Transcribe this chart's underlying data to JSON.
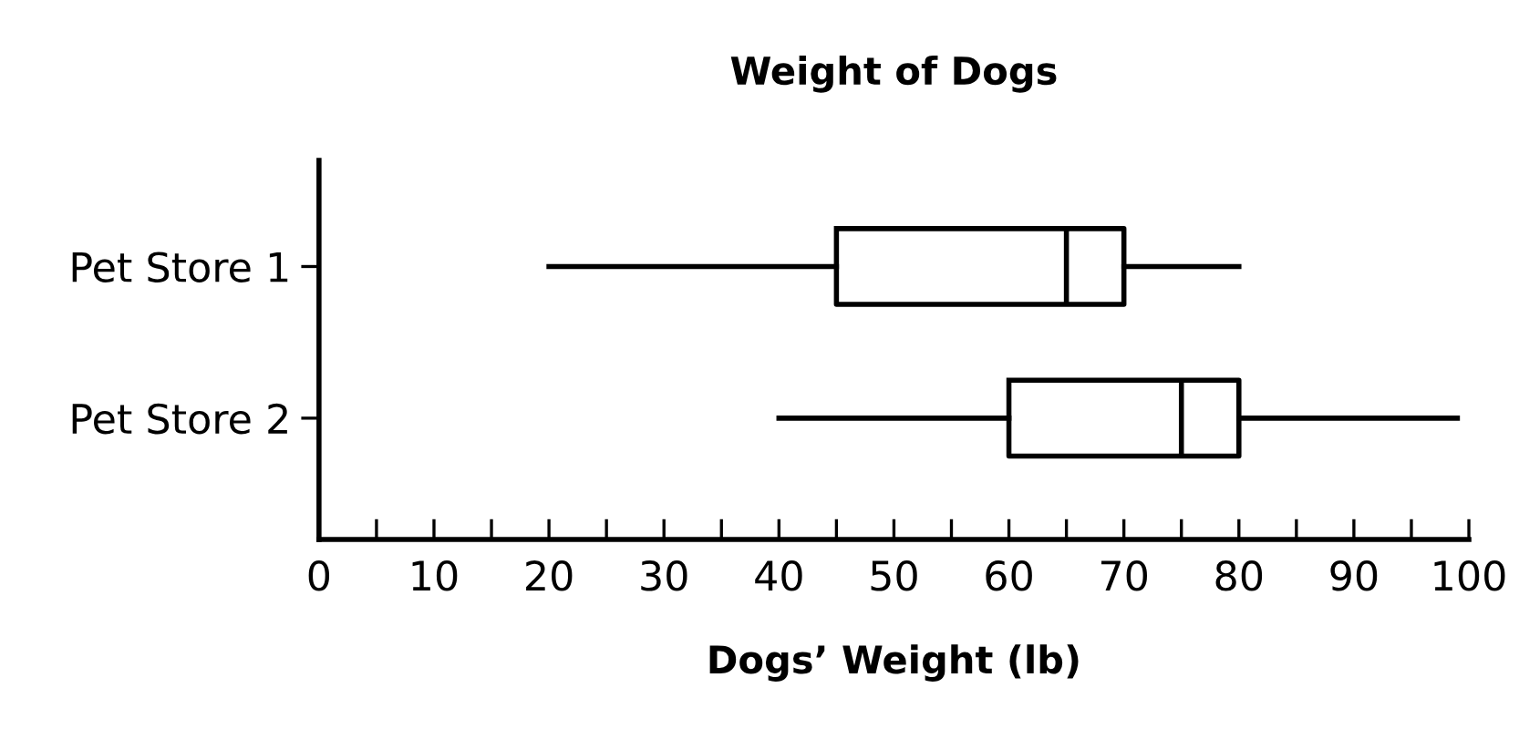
{
  "chart_data": {
    "type": "box",
    "title": "Weight of Dogs",
    "xlabel": "Dogs’ Weight (lb)",
    "orientation": "horizontal",
    "categories": [
      "Pet Store 1",
      "Pet Store 2"
    ],
    "boxes": [
      {
        "low": 20,
        "q1": 45,
        "median": 65,
        "q3": 70,
        "high": 80
      },
      {
        "low": 40,
        "q1": 60,
        "median": 75,
        "q3": 80,
        "high": 99
      }
    ],
    "xlim": [
      0,
      100
    ],
    "xticks": [
      0,
      {
        "value": 5,
        "label": null
      },
      10,
      {
        "value": 15,
        "label": null
      },
      20,
      {
        "value": 25,
        "label": null
      },
      30,
      {
        "value": 35,
        "label": null
      },
      40,
      {
        "value": 45,
        "label": null
      },
      50,
      {
        "value": 55,
        "label": null
      },
      60,
      {
        "value": 65,
        "label": null
      },
      70,
      {
        "value": 75,
        "label": null
      },
      80,
      {
        "value": 85,
        "label": null
      },
      90,
      {
        "value": 95,
        "label": null
      },
      100
    ],
    "grid": false
  }
}
